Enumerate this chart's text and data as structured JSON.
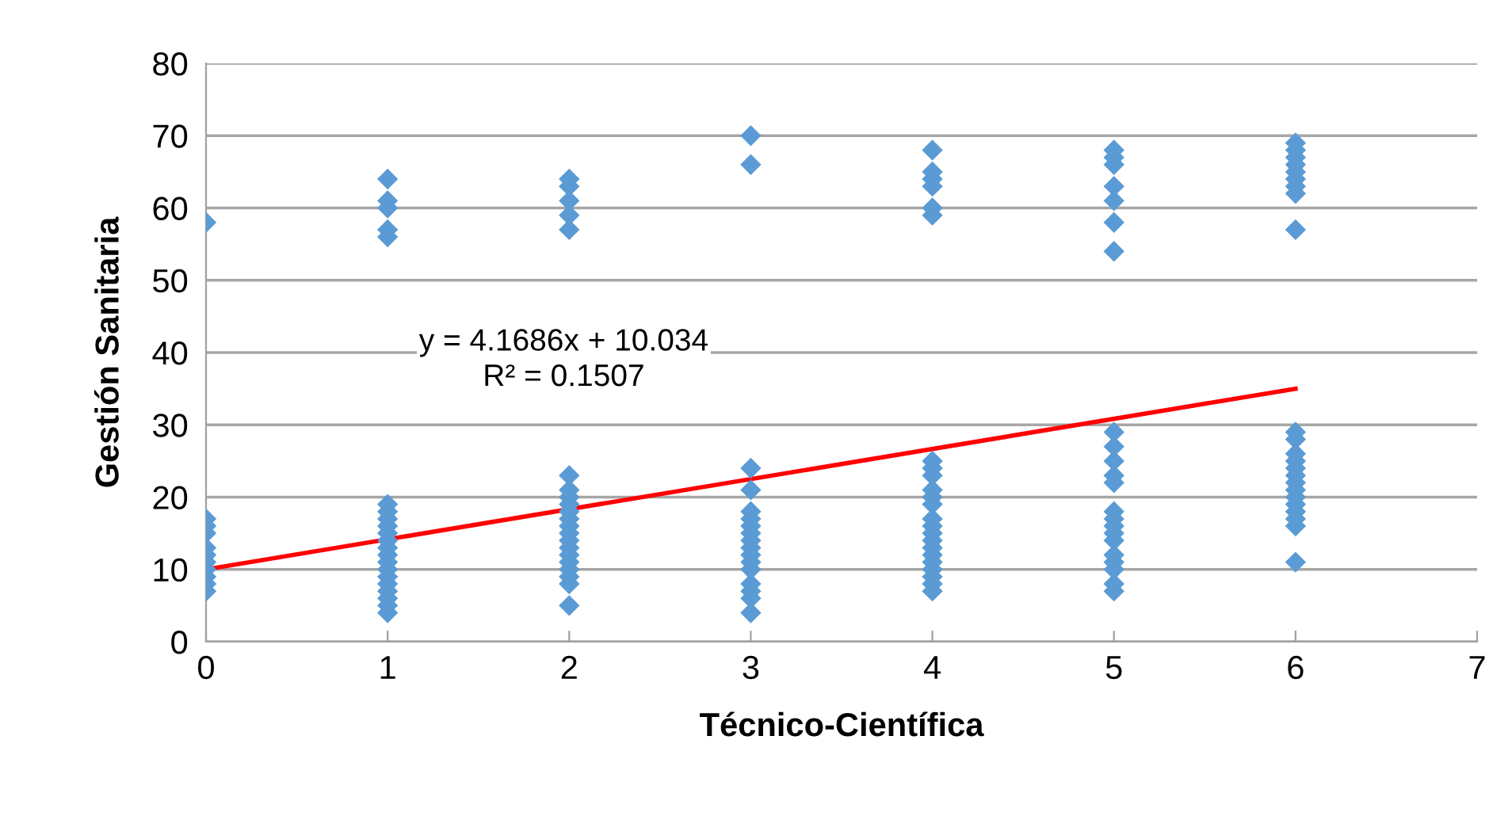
{
  "chart_data": {
    "type": "scatter",
    "xlabel": "Técnico-Científica",
    "ylabel": "Gestión Sanitaria",
    "xlim": [
      0,
      7
    ],
    "xticks": [
      0,
      1,
      2,
      3,
      4,
      5,
      6,
      7
    ],
    "ylim": [
      0,
      80
    ],
    "yticks": [
      0,
      10,
      20,
      30,
      40,
      50,
      60,
      70,
      80
    ],
    "grid": "y",
    "legend": false,
    "annotations": [
      "y = 4.1686x + 10.034\nR² = 0.1507"
    ],
    "series": [
      {
        "color": "#5b9bd5",
        "marker": "diamond",
        "x": [
          0,
          0,
          0,
          0,
          0,
          0,
          0,
          0,
          0,
          0,
          0,
          1,
          1,
          1,
          1,
          1,
          1,
          1,
          1,
          1,
          1,
          1,
          1,
          1,
          1,
          1,
          1,
          1,
          1,
          1,
          1,
          1,
          2,
          2,
          2,
          2,
          2,
          2,
          2,
          2,
          2,
          2,
          2,
          2,
          2,
          2,
          2,
          2,
          2,
          2,
          2,
          2,
          2,
          3,
          3,
          3,
          3,
          3,
          3,
          3,
          3,
          3,
          3,
          3,
          3,
          3,
          3,
          3,
          3,
          3,
          4,
          4,
          4,
          4,
          4,
          4,
          4,
          4,
          4,
          4,
          4,
          4,
          4,
          4,
          4,
          4,
          4,
          4,
          4,
          4,
          4,
          4,
          4,
          5,
          5,
          5,
          5,
          5,
          5,
          5,
          5,
          5,
          5,
          5,
          5,
          5,
          5,
          5,
          5,
          5,
          5,
          5,
          5,
          5,
          5,
          6,
          6,
          6,
          6,
          6,
          6,
          6,
          6,
          6,
          6,
          6,
          6,
          6,
          6,
          6,
          6,
          6,
          6,
          6,
          6,
          6,
          6,
          6
        ],
        "values": [
          7,
          8,
          9,
          10,
          11,
          12,
          13,
          15,
          16,
          17,
          58,
          4,
          5,
          6,
          7,
          8,
          9,
          10,
          11,
          12,
          13,
          14,
          15,
          16,
          17,
          18,
          19,
          56,
          57,
          60,
          61,
          64,
          5,
          8,
          9,
          10,
          11,
          12,
          13,
          14,
          15,
          16,
          17,
          18,
          19,
          20,
          21,
          23,
          57,
          59,
          61,
          63,
          64,
          4,
          6,
          7,
          8,
          10,
          11,
          12,
          13,
          14,
          15,
          16,
          17,
          18,
          21,
          24,
          66,
          70,
          7,
          8,
          9,
          10,
          11,
          12,
          13,
          14,
          15,
          16,
          17,
          19,
          20,
          21,
          23,
          24,
          25,
          59,
          60,
          63,
          64,
          65,
          68,
          7,
          8,
          10,
          11,
          12,
          14,
          15,
          16,
          17,
          18,
          22,
          23,
          25,
          27,
          29,
          54,
          58,
          61,
          63,
          66,
          67,
          68,
          11,
          16,
          17,
          18,
          19,
          20,
          21,
          22,
          23,
          24,
          25,
          26,
          28,
          29,
          57,
          62,
          63,
          64,
          65,
          66,
          67,
          68,
          69
        ]
      },
      {
        "type": "line",
        "color": "#ff0000",
        "line_style": "solid",
        "x": [
          0,
          6
        ],
        "values": [
          10.0,
          35.0
        ]
      }
    ]
  }
}
